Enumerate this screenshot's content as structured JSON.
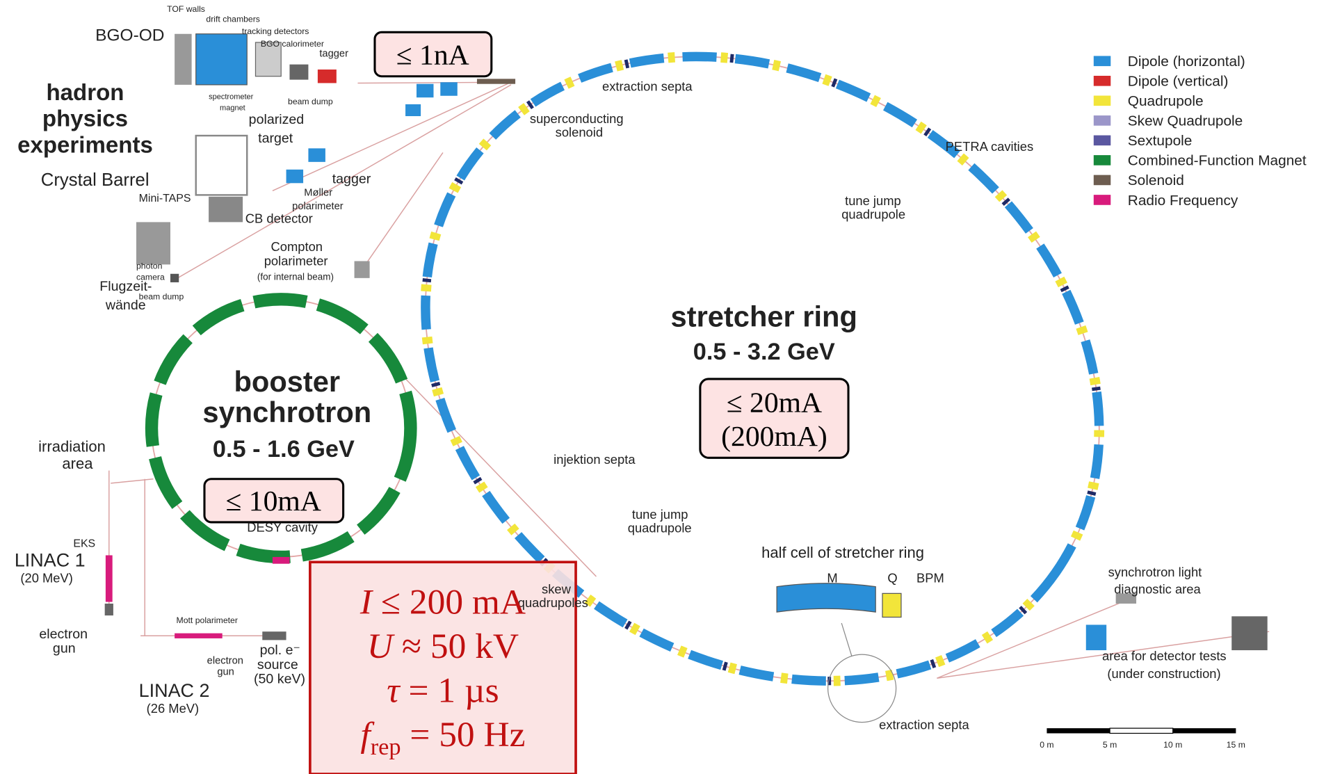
{
  "labels": [
    "BGO-OD",
    "TOF walls",
    "drift chambers",
    "tracking detectors",
    "BGO calorimeter",
    "tagger",
    "spectrometer",
    "magnet",
    "beam dump",
    "hadron",
    "physics",
    "experiments",
    "polarized",
    "target",
    "Crystal Barrel",
    "Mini-TAPS",
    "CB detector",
    "tagger",
    "Møller",
    "polarimeter",
    "photon",
    "camera",
    "beam dump",
    "Flugzeit-",
    "wände",
    "extraction septa",
    "superconducting",
    "solenoid",
    "PETRA cavities",
    "tune jump",
    "quadrupole",
    "Compton",
    "polarimeter",
    "(for internal beam)",
    "stretcher ring",
    "0.5 - 3.2 GeV",
    "booster",
    "synchrotron",
    "0.5 - 1.6 GeV",
    "DESY cavity",
    "injektion septa",
    "tune jump",
    "quadrupole",
    "skew",
    "quadrupoles",
    "half cell of stretcher ring",
    "M",
    "Q",
    "BPM",
    "synchrotron light",
    "diagnostic area",
    "area for detector tests",
    "(under construction)",
    "extraction septa",
    "irradiation",
    "area",
    "EKS",
    "LINAC 1",
    "(20 MeV)",
    "electron",
    "gun",
    "Mott polarimeter",
    "electron",
    "gun",
    "pol. e⁻",
    "source",
    "(50 keV)",
    "LINAC 2",
    "(26 MeV)"
  ],
  "current_boxes": [
    [
      "≤ 1nA"
    ],
    [
      "≤ 20mA",
      "(200mA)"
    ],
    [
      "≤ 10mA"
    ]
  ],
  "source_parameters": [
    {
      "symbol": "I",
      "rest": " ≤ 200 mA"
    },
    {
      "symbol": "U",
      "rest": " ≈ 50 kV"
    },
    {
      "symbol": "τ",
      "rest": " = 1 µs"
    },
    {
      "symbol": "f",
      "subscript": "rep",
      "rest": " = 50 Hz"
    }
  ],
  "legend": [
    {
      "label": "Dipole (horizontal)",
      "color": "#2a8fd8"
    },
    {
      "label": "Dipole (vertical)",
      "color": "#d62b2b"
    },
    {
      "label": "Quadrupole",
      "color": "#f2e53a"
    },
    {
      "label": "Skew Quadrupole",
      "color": "#9b96c9"
    },
    {
      "label": "Sextupole",
      "color": "#5a57a0"
    },
    {
      "label": "Combined-Function Magnet",
      "color": "#17893b"
    },
    {
      "label": "Solenoid",
      "color": "#6d5d50"
    },
    {
      "label": "Radio Frequency",
      "color": "#d81b7c"
    }
  ],
  "scale_bar": [
    "0 m",
    "5 m",
    "10 m",
    "15 m"
  ]
}
